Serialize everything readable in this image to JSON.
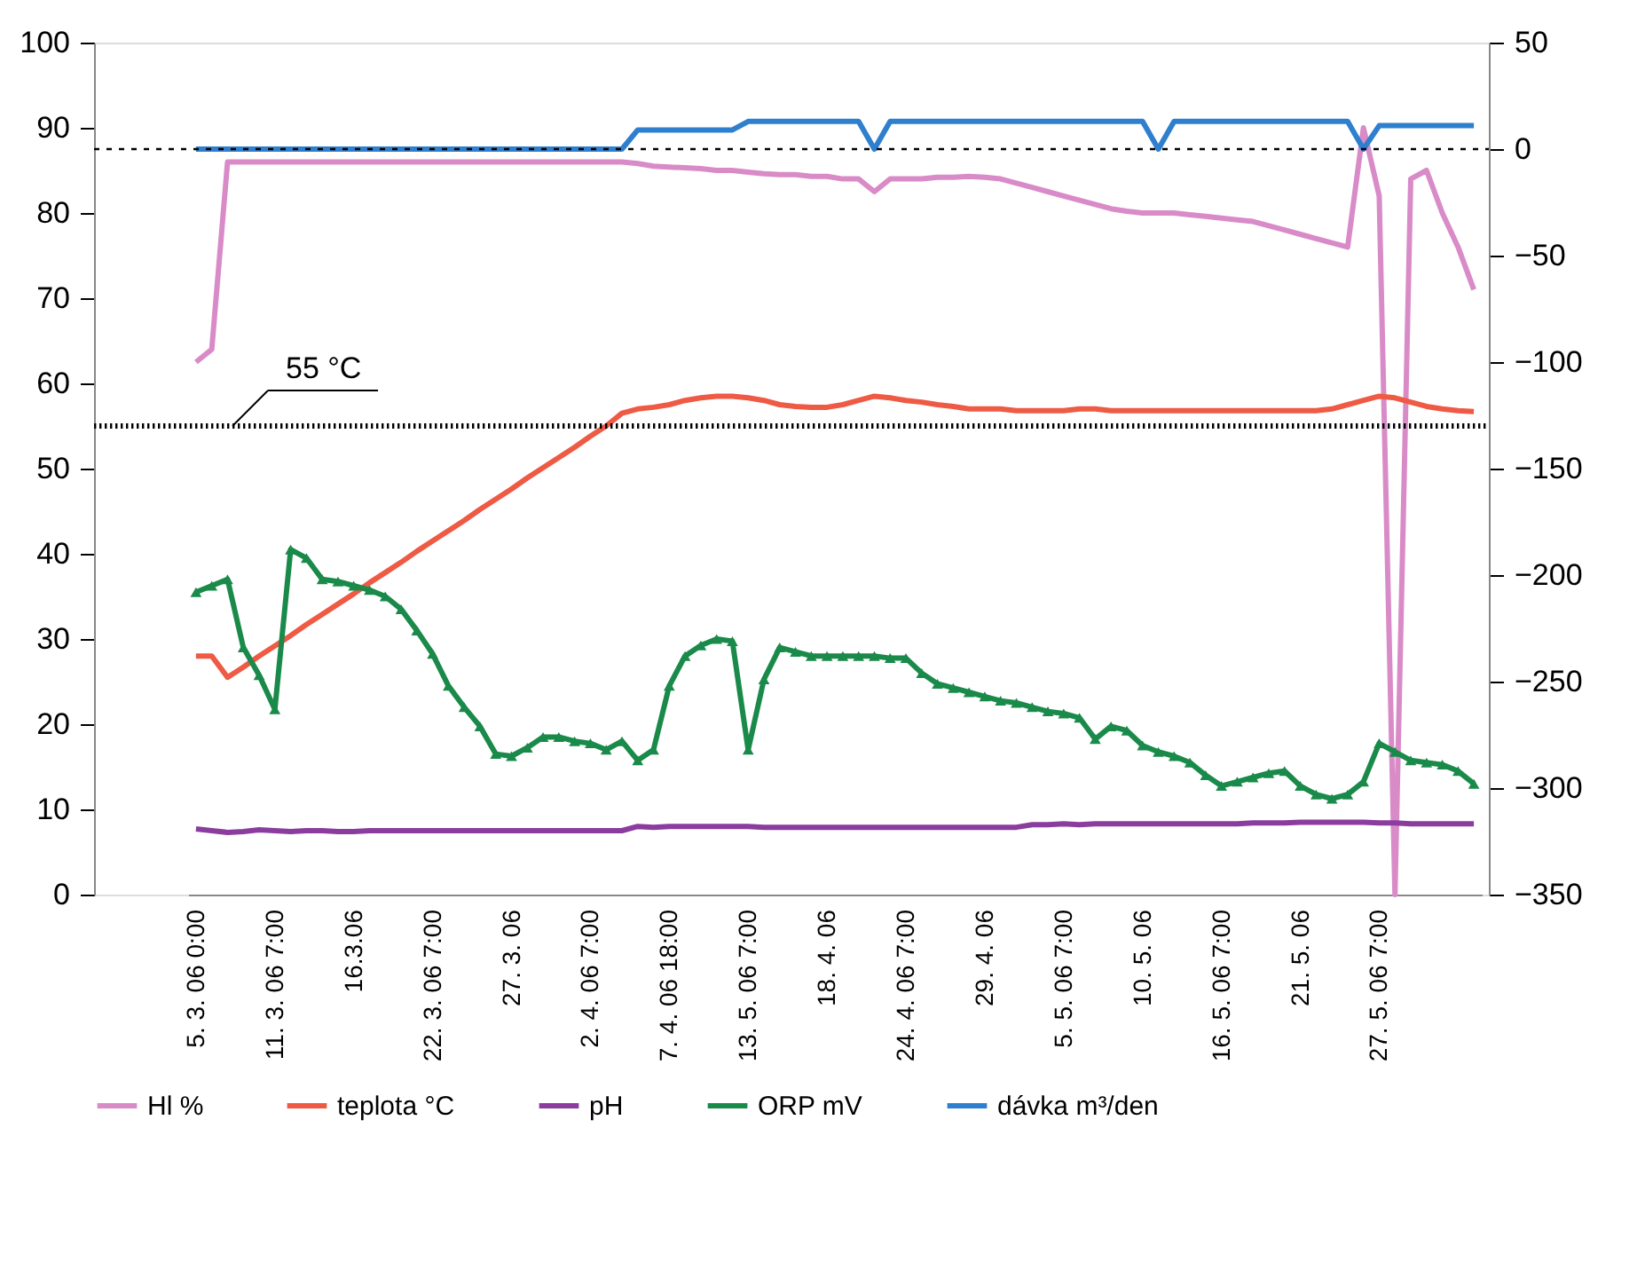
{
  "chart_data": {
    "type": "line",
    "categories": [
      "5. 3. 06 0:00",
      null,
      null,
      null,
      null,
      "11. 3. 06 7:00",
      null,
      null,
      null,
      null,
      "16.3.06",
      null,
      null,
      null,
      null,
      "22. 3. 06 7:00",
      null,
      null,
      null,
      null,
      "27. 3. 06",
      null,
      null,
      null,
      null,
      "2. 4. 06 7:00",
      null,
      null,
      null,
      null,
      "7. 4. 06 18:00",
      null,
      null,
      null,
      null,
      "13. 5. 06 7:00",
      null,
      null,
      null,
      null,
      "18. 4. 06",
      null,
      null,
      null,
      null,
      "24. 4. 06 7:00",
      null,
      null,
      null,
      null,
      "29. 4. 06",
      null,
      null,
      null,
      null,
      "5. 5. 06 7:00",
      null,
      null,
      null,
      null,
      "10. 5. 06",
      null,
      null,
      null,
      null,
      "16. 5. 06 7:00",
      null,
      null,
      null,
      null,
      "21. 5. 06",
      null,
      null,
      null,
      null,
      "27. 5. 06 7:00",
      null,
      null,
      null,
      null,
      null,
      null
    ],
    "series": [
      {
        "name": "Hl %",
        "color": "#d98bc8",
        "marker": "none",
        "values": [
          62.5,
          64,
          86,
          86,
          86,
          86,
          86,
          86,
          86,
          86,
          86,
          86,
          86,
          86,
          86,
          86,
          86,
          86,
          86,
          86,
          86,
          86,
          86,
          86,
          86,
          86,
          86,
          86,
          85.8,
          85.5,
          85.4,
          85.3,
          85.2,
          85,
          85,
          84.8,
          84.6,
          84.5,
          84.5,
          84.3,
          84.3,
          84,
          84,
          82.5,
          84,
          84,
          84,
          84.2,
          84.2,
          84.3,
          84.2,
          84,
          83.5,
          83,
          82.5,
          82,
          81.5,
          81,
          80.5,
          80.2,
          80,
          80,
          80,
          79.8,
          79.6,
          79.4,
          79.2,
          79,
          78.5,
          78,
          77.5,
          77,
          76.5,
          76,
          90,
          82,
          0,
          84,
          85,
          80,
          76,
          71
        ]
      },
      {
        "name": "teplota °C",
        "color": "#ee5a44",
        "marker": "none",
        "values": [
          28,
          28,
          25.5,
          26.7,
          28,
          29.2,
          30.4,
          31.7,
          32.9,
          34.1,
          35.3,
          36.6,
          37.8,
          39,
          40.3,
          41.5,
          42.7,
          43.9,
          45.2,
          46.4,
          47.6,
          48.9,
          50.1,
          51.3,
          52.5,
          53.8,
          55,
          56.5,
          57,
          57.2,
          57.5,
          58,
          58.3,
          58.5,
          58.5,
          58.3,
          58,
          57.5,
          57.3,
          57.2,
          57.2,
          57.5,
          58,
          58.5,
          58.3,
          58,
          57.8,
          57.5,
          57.3,
          57,
          57,
          57,
          56.8,
          56.8,
          56.8,
          56.8,
          57,
          57,
          56.8,
          56.8,
          56.8,
          56.8,
          56.8,
          56.8,
          56.8,
          56.8,
          56.8,
          56.8,
          56.8,
          56.8,
          56.8,
          56.8,
          57,
          57.5,
          58,
          58.5,
          58.3,
          57.8,
          57.3,
          57,
          56.8,
          56.7
        ]
      },
      {
        "name": "pH",
        "color": "#8a3d9e",
        "marker": "none",
        "values": [
          7.7,
          7.5,
          7.3,
          7.4,
          7.6,
          7.5,
          7.4,
          7.5,
          7.5,
          7.4,
          7.4,
          7.5,
          7.5,
          7.5,
          7.5,
          7.5,
          7.5,
          7.5,
          7.5,
          7.5,
          7.5,
          7.5,
          7.5,
          7.5,
          7.5,
          7.5,
          7.5,
          7.5,
          8,
          7.9,
          8,
          8,
          8,
          8,
          8,
          8,
          7.9,
          7.9,
          7.9,
          7.9,
          7.9,
          7.9,
          7.9,
          7.9,
          7.9,
          7.9,
          7.9,
          7.9,
          7.9,
          7.9,
          7.9,
          7.9,
          7.9,
          8.2,
          8.2,
          8.3,
          8.2,
          8.3,
          8.3,
          8.3,
          8.3,
          8.3,
          8.3,
          8.3,
          8.3,
          8.3,
          8.3,
          8.4,
          8.4,
          8.4,
          8.5,
          8.5,
          8.5,
          8.5,
          8.5,
          8.4,
          8.4,
          8.3,
          8.3,
          8.3,
          8.3,
          8.3
        ]
      },
      {
        "name": "ORP mV",
        "color": "#1a8a4a",
        "marker": "triangle",
        "axis": "y2",
        "values": [
          -208,
          -205,
          -202,
          -234,
          -247,
          -263,
          -188,
          -192,
          -202,
          -203,
          -205,
          -207,
          -210,
          -216,
          -226,
          -237,
          -252,
          -262,
          -271,
          -284,
          -285,
          -281,
          -276,
          -276,
          -278,
          -279,
          -282,
          -278,
          -287,
          -282,
          -252,
          -238,
          -233,
          -230,
          -231,
          -282,
          -249,
          -234,
          -236,
          -238,
          -238,
          -238,
          -238,
          -238,
          -239,
          -239,
          -246,
          -251,
          -253,
          -255,
          -257,
          -259,
          -260,
          -262,
          -264,
          -265,
          -267,
          -277,
          -271,
          -273,
          -280,
          -283,
          -285,
          -288,
          -294,
          -299,
          -297,
          -295,
          -293,
          -292,
          -299,
          -303,
          -305,
          -303,
          -297,
          -279,
          -283,
          -287,
          -288,
          -289,
          -292,
          -298
        ]
      },
      {
        "name": "dávka m³/den",
        "color": "#2f7fcf",
        "marker": "none",
        "axis": "y2",
        "values": [
          0,
          0,
          0,
          0,
          0,
          0,
          0,
          0,
          0,
          0,
          0,
          0,
          0,
          0,
          0,
          0,
          0,
          0,
          0,
          0,
          0,
          0,
          0,
          0,
          0,
          0,
          0,
          0,
          9,
          9,
          9,
          9,
          9,
          9,
          9,
          13,
          13,
          13,
          13,
          13,
          13,
          13,
          13,
          0,
          13,
          13,
          13,
          13,
          13,
          13,
          13,
          13,
          13,
          13,
          13,
          13,
          13,
          13,
          13,
          13,
          13,
          0,
          13,
          13,
          13,
          13,
          13,
          13,
          13,
          13,
          13,
          13,
          13,
          13,
          0,
          11,
          11,
          11,
          11,
          11,
          11,
          11
        ]
      }
    ],
    "ylim": [
      0,
      100
    ],
    "yticks": [
      0,
      10,
      20,
      30,
      40,
      50,
      60,
      70,
      80,
      90,
      100
    ],
    "y2lim": [
      -350,
      50
    ],
    "y2ticks": [
      50,
      0,
      -50,
      -100,
      -150,
      -200,
      -250,
      -300,
      -350
    ],
    "ref_lines": [
      {
        "axis": "y2",
        "value": 0,
        "color": "#000000",
        "line_style": "dotted"
      },
      {
        "axis": "y",
        "value": 55,
        "label": "55 °C",
        "color": "#000000",
        "line_style": "dotted"
      }
    ],
    "grid": false,
    "legend": "bottom",
    "line_style": "solid"
  }
}
